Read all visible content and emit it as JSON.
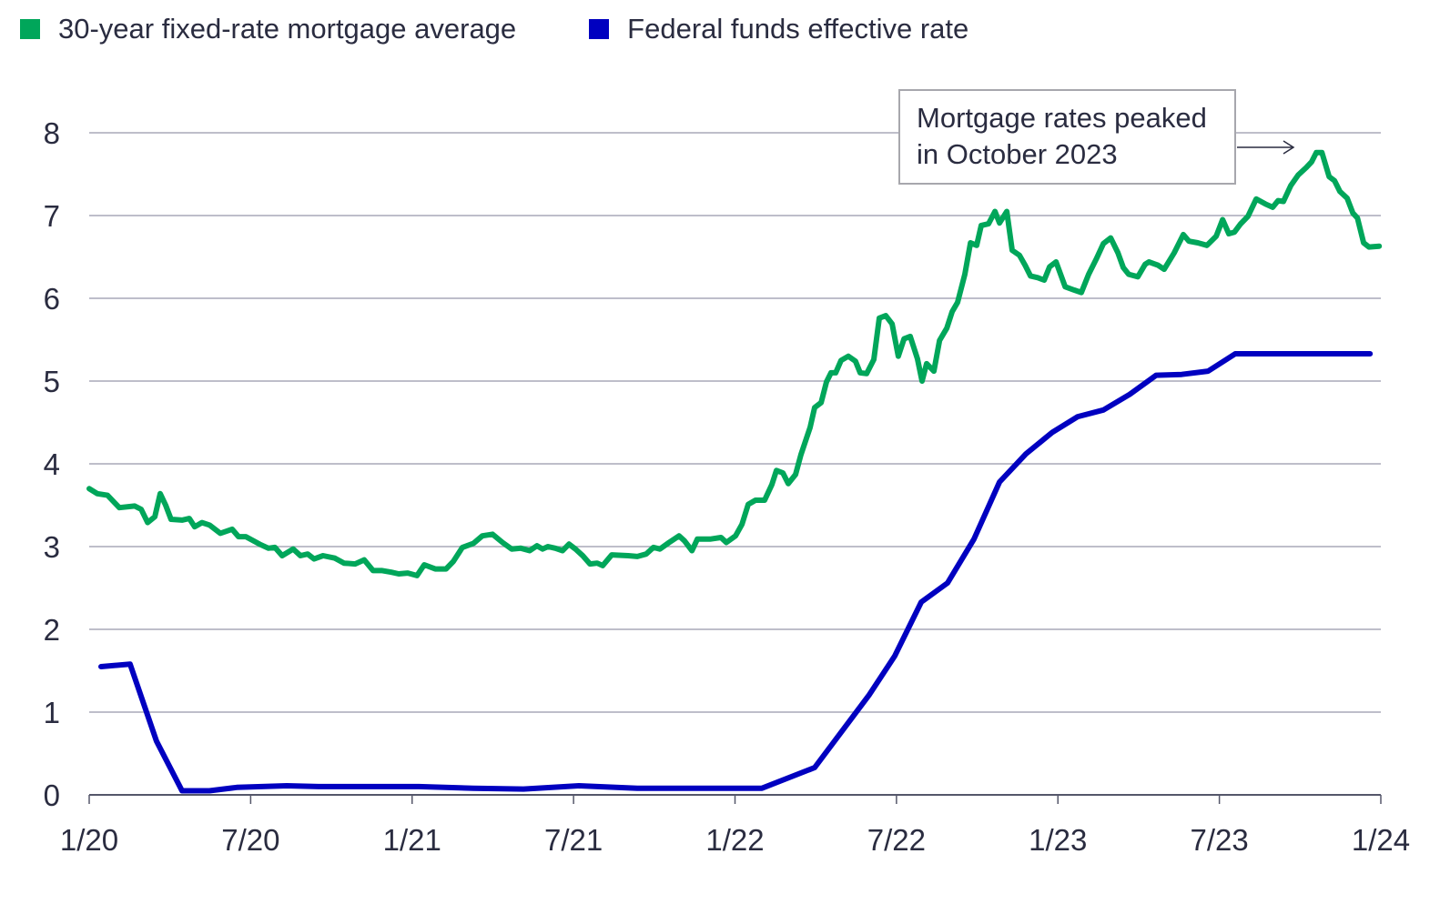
{
  "chart_data": {
    "type": "line",
    "title": "",
    "xlabel": "",
    "ylabel": "",
    "ylim": [
      0,
      8
    ],
    "xlim_months_since_jan_2020": [
      0,
      48
    ],
    "y_ticks": [
      "0",
      "1",
      "2",
      "3",
      "4",
      "5",
      "6",
      "7",
      "8"
    ],
    "x_ticks": [
      {
        "label": "1/20",
        "month": 0
      },
      {
        "label": "7/20",
        "month": 6
      },
      {
        "label": "1/21",
        "month": 12
      },
      {
        "label": "7/21",
        "month": 18
      },
      {
        "label": "1/22",
        "month": 24
      },
      {
        "label": "7/22",
        "month": 30
      },
      {
        "label": "1/23",
        "month": 36
      },
      {
        "label": "7/23",
        "month": 42
      },
      {
        "label": "1/24",
        "month": 48
      }
    ],
    "grid": true,
    "legend_placement": "top-left",
    "annotation": {
      "line1": "Mortgage rates peaked",
      "line2": "in October 2023"
    },
    "series": [
      {
        "name": "30-year fixed-rate mortgage average",
        "color": "#00a65a",
        "points": [
          [
            0,
            3.7
          ],
          [
            0.3,
            3.64
          ],
          [
            0.68,
            3.62
          ],
          [
            1.12,
            3.47
          ],
          [
            1.69,
            3.49
          ],
          [
            1.93,
            3.45
          ],
          [
            2.17,
            3.29
          ],
          [
            2.44,
            3.36
          ],
          [
            2.64,
            3.64
          ],
          [
            2.84,
            3.5
          ],
          [
            3.04,
            3.33
          ],
          [
            3.45,
            3.32
          ],
          [
            3.72,
            3.34
          ],
          [
            3.92,
            3.24
          ],
          [
            4.19,
            3.29
          ],
          [
            4.47,
            3.26
          ],
          [
            4.87,
            3.16
          ],
          [
            5.31,
            3.21
          ],
          [
            5.55,
            3.12
          ],
          [
            5.82,
            3.12
          ],
          [
            6.33,
            3.03
          ],
          [
            6.66,
            2.98
          ],
          [
            6.9,
            2.99
          ],
          [
            7.17,
            2.89
          ],
          [
            7.58,
            2.97
          ],
          [
            7.85,
            2.89
          ],
          [
            8.12,
            2.91
          ],
          [
            8.36,
            2.85
          ],
          [
            8.69,
            2.89
          ],
          [
            9.13,
            2.86
          ],
          [
            9.47,
            2.8
          ],
          [
            9.88,
            2.79
          ],
          [
            10.22,
            2.84
          ],
          [
            10.55,
            2.71
          ],
          [
            10.89,
            2.71
          ],
          [
            11.23,
            2.69
          ],
          [
            11.5,
            2.67
          ],
          [
            11.84,
            2.68
          ],
          [
            12.18,
            2.65
          ],
          [
            12.45,
            2.78
          ],
          [
            12.86,
            2.73
          ],
          [
            13.26,
            2.73
          ],
          [
            13.53,
            2.82
          ],
          [
            13.87,
            2.99
          ],
          [
            14.28,
            3.04
          ],
          [
            14.61,
            3.13
          ],
          [
            14.99,
            3.15
          ],
          [
            15.36,
            3.05
          ],
          [
            15.7,
            2.97
          ],
          [
            16.04,
            2.98
          ],
          [
            16.37,
            2.95
          ],
          [
            16.64,
            3.01
          ],
          [
            16.85,
            2.97
          ],
          [
            17.05,
            3.0
          ],
          [
            17.32,
            2.98
          ],
          [
            17.59,
            2.95
          ],
          [
            17.83,
            3.03
          ],
          [
            18.07,
            2.97
          ],
          [
            18.34,
            2.89
          ],
          [
            18.61,
            2.79
          ],
          [
            18.88,
            2.8
          ],
          [
            19.08,
            2.77
          ],
          [
            19.42,
            2.9
          ],
          [
            20.03,
            2.89
          ],
          [
            20.37,
            2.88
          ],
          [
            20.7,
            2.91
          ],
          [
            20.97,
            2.99
          ],
          [
            21.21,
            2.97
          ],
          [
            21.55,
            3.05
          ],
          [
            21.92,
            3.13
          ],
          [
            22.12,
            3.07
          ],
          [
            22.4,
            2.95
          ],
          [
            22.6,
            3.09
          ],
          [
            23.07,
            3.09
          ],
          [
            23.48,
            3.11
          ],
          [
            23.68,
            3.05
          ],
          [
            24.02,
            3.13
          ],
          [
            24.26,
            3.27
          ],
          [
            24.49,
            3.51
          ],
          [
            24.76,
            3.56
          ],
          [
            25.1,
            3.56
          ],
          [
            25.37,
            3.75
          ],
          [
            25.54,
            3.92
          ],
          [
            25.78,
            3.89
          ],
          [
            25.98,
            3.76
          ],
          [
            26.25,
            3.87
          ],
          [
            26.45,
            4.11
          ],
          [
            26.79,
            4.44
          ],
          [
            26.96,
            4.68
          ],
          [
            27.2,
            4.74
          ],
          [
            27.4,
            4.99
          ],
          [
            27.57,
            5.1
          ],
          [
            27.74,
            5.1
          ],
          [
            27.94,
            5.25
          ],
          [
            28.21,
            5.3
          ],
          [
            28.48,
            5.24
          ],
          [
            28.65,
            5.1
          ],
          [
            28.89,
            5.09
          ],
          [
            29.16,
            5.26
          ],
          [
            29.36,
            5.76
          ],
          [
            29.6,
            5.79
          ],
          [
            29.84,
            5.69
          ],
          [
            30.07,
            5.3
          ],
          [
            30.28,
            5.51
          ],
          [
            30.51,
            5.54
          ],
          [
            30.78,
            5.27
          ],
          [
            30.95,
            5.0
          ],
          [
            31.12,
            5.21
          ],
          [
            31.39,
            5.12
          ],
          [
            31.6,
            5.49
          ],
          [
            31.87,
            5.64
          ],
          [
            32.07,
            5.84
          ],
          [
            32.27,
            5.95
          ],
          [
            32.54,
            6.29
          ],
          [
            32.75,
            6.67
          ],
          [
            32.98,
            6.64
          ],
          [
            33.15,
            6.88
          ],
          [
            33.42,
            6.9
          ],
          [
            33.66,
            7.05
          ],
          [
            33.83,
            6.91
          ],
          [
            34.1,
            7.05
          ],
          [
            34.3,
            6.58
          ],
          [
            34.57,
            6.52
          ],
          [
            34.78,
            6.4
          ],
          [
            34.98,
            6.27
          ],
          [
            35.25,
            6.25
          ],
          [
            35.49,
            6.22
          ],
          [
            35.69,
            6.38
          ],
          [
            35.93,
            6.44
          ],
          [
            36.27,
            6.14
          ],
          [
            36.6,
            6.1
          ],
          [
            36.87,
            6.07
          ],
          [
            37.14,
            6.29
          ],
          [
            37.42,
            6.47
          ],
          [
            37.69,
            6.66
          ],
          [
            37.96,
            6.73
          ],
          [
            38.23,
            6.55
          ],
          [
            38.43,
            6.37
          ],
          [
            38.63,
            6.29
          ],
          [
            38.97,
            6.26
          ],
          [
            39.24,
            6.41
          ],
          [
            39.38,
            6.44
          ],
          [
            39.72,
            6.4
          ],
          [
            39.95,
            6.35
          ],
          [
            40.32,
            6.55
          ],
          [
            40.66,
            6.77
          ],
          [
            40.87,
            6.69
          ],
          [
            41.2,
            6.67
          ],
          [
            41.54,
            6.64
          ],
          [
            41.88,
            6.75
          ],
          [
            42.12,
            6.95
          ],
          [
            42.35,
            6.78
          ],
          [
            42.56,
            6.8
          ],
          [
            42.79,
            6.9
          ],
          [
            43.06,
            6.99
          ],
          [
            43.37,
            7.2
          ],
          [
            43.71,
            7.14
          ],
          [
            43.98,
            7.1
          ],
          [
            44.18,
            7.18
          ],
          [
            44.38,
            7.17
          ],
          [
            44.65,
            7.36
          ],
          [
            44.93,
            7.49
          ],
          [
            45.23,
            7.58
          ],
          [
            45.43,
            7.65
          ],
          [
            45.6,
            7.76
          ],
          [
            45.81,
            7.76
          ],
          [
            46.08,
            7.47
          ],
          [
            46.28,
            7.42
          ],
          [
            46.48,
            7.29
          ],
          [
            46.75,
            7.21
          ],
          [
            46.96,
            7.03
          ],
          [
            47.13,
            6.97
          ],
          [
            47.36,
            6.67
          ],
          [
            47.56,
            6.62
          ],
          [
            47.94,
            6.63
          ]
        ]
      },
      {
        "name": "Federal funds effective rate",
        "color": "#0000c0",
        "points": [
          [
            0.44,
            1.55
          ],
          [
            1.52,
            1.58
          ],
          [
            2.5,
            0.65
          ],
          [
            3.45,
            0.05
          ],
          [
            4.47,
            0.05
          ],
          [
            5.48,
            0.09
          ],
          [
            7.34,
            0.11
          ],
          [
            8.52,
            0.1
          ],
          [
            12.25,
            0.1
          ],
          [
            14.28,
            0.08
          ],
          [
            16.14,
            0.07
          ],
          [
            18.2,
            0.11
          ],
          [
            20.37,
            0.08
          ],
          [
            25.0,
            0.08
          ],
          [
            26.96,
            0.33
          ],
          [
            28.99,
            1.21
          ],
          [
            29.94,
            1.68
          ],
          [
            30.92,
            2.33
          ],
          [
            31.9,
            2.56
          ],
          [
            32.88,
            3.09
          ],
          [
            33.83,
            3.78
          ],
          [
            34.81,
            4.12
          ],
          [
            35.79,
            4.38
          ],
          [
            36.74,
            4.57
          ],
          [
            37.69,
            4.65
          ],
          [
            38.67,
            4.84
          ],
          [
            39.65,
            5.07
          ],
          [
            40.6,
            5.08
          ],
          [
            41.58,
            5.12
          ],
          [
            42.59,
            5.33
          ],
          [
            47.6,
            5.33
          ]
        ]
      }
    ]
  }
}
